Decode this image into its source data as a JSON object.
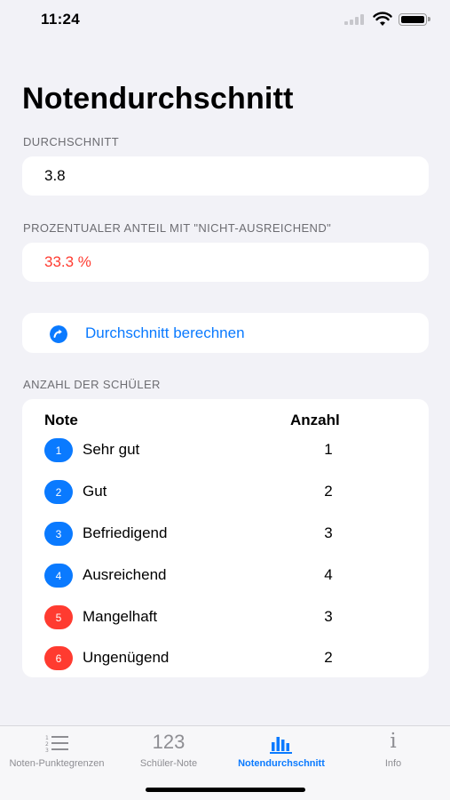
{
  "status_bar": {
    "time": "11:24"
  },
  "page_title": "Notendurchschnitt",
  "average": {
    "header": "DURCHSCHNITT",
    "value": "3.8"
  },
  "fail_share": {
    "header": "PROZENTUALER ANTEIL MIT \"NICHT-AUSREICHEND\"",
    "value": "33.3 %"
  },
  "calculate": {
    "label": "Durchschnitt berechnen"
  },
  "students": {
    "header": "ANZAHL DER SCHÜLER",
    "col_grade": "Note",
    "col_count": "Anzahl",
    "rows": [
      {
        "num": "1",
        "label": "Sehr gut",
        "count": "1",
        "color": "#0a7aff"
      },
      {
        "num": "2",
        "label": "Gut",
        "count": "2",
        "color": "#0a7aff"
      },
      {
        "num": "3",
        "label": "Befriedigend",
        "count": "3",
        "color": "#0a7aff"
      },
      {
        "num": "4",
        "label": "Ausreichend",
        "count": "4",
        "color": "#0a7aff"
      },
      {
        "num": "5",
        "label": "Mangelhaft",
        "count": "3",
        "color": "#ff3b30"
      },
      {
        "num": "6",
        "label": "Ungenügend",
        "count": "2",
        "color": "#ff3b30"
      }
    ]
  },
  "tabs": [
    {
      "label": "Noten-Punktegrenzen",
      "icon": "list-icon",
      "active": false
    },
    {
      "label": "Schüler-Note",
      "icon": "numbers-icon",
      "icon_text": "123",
      "active": false
    },
    {
      "label": "Notendurchschnitt",
      "icon": "chart-icon",
      "active": true
    },
    {
      "label": "Info",
      "icon": "info-icon",
      "icon_text": "i",
      "active": false
    }
  ],
  "colors": {
    "accent": "#0a7aff",
    "danger": "#ff3b30",
    "background": "#f2f2f7"
  }
}
